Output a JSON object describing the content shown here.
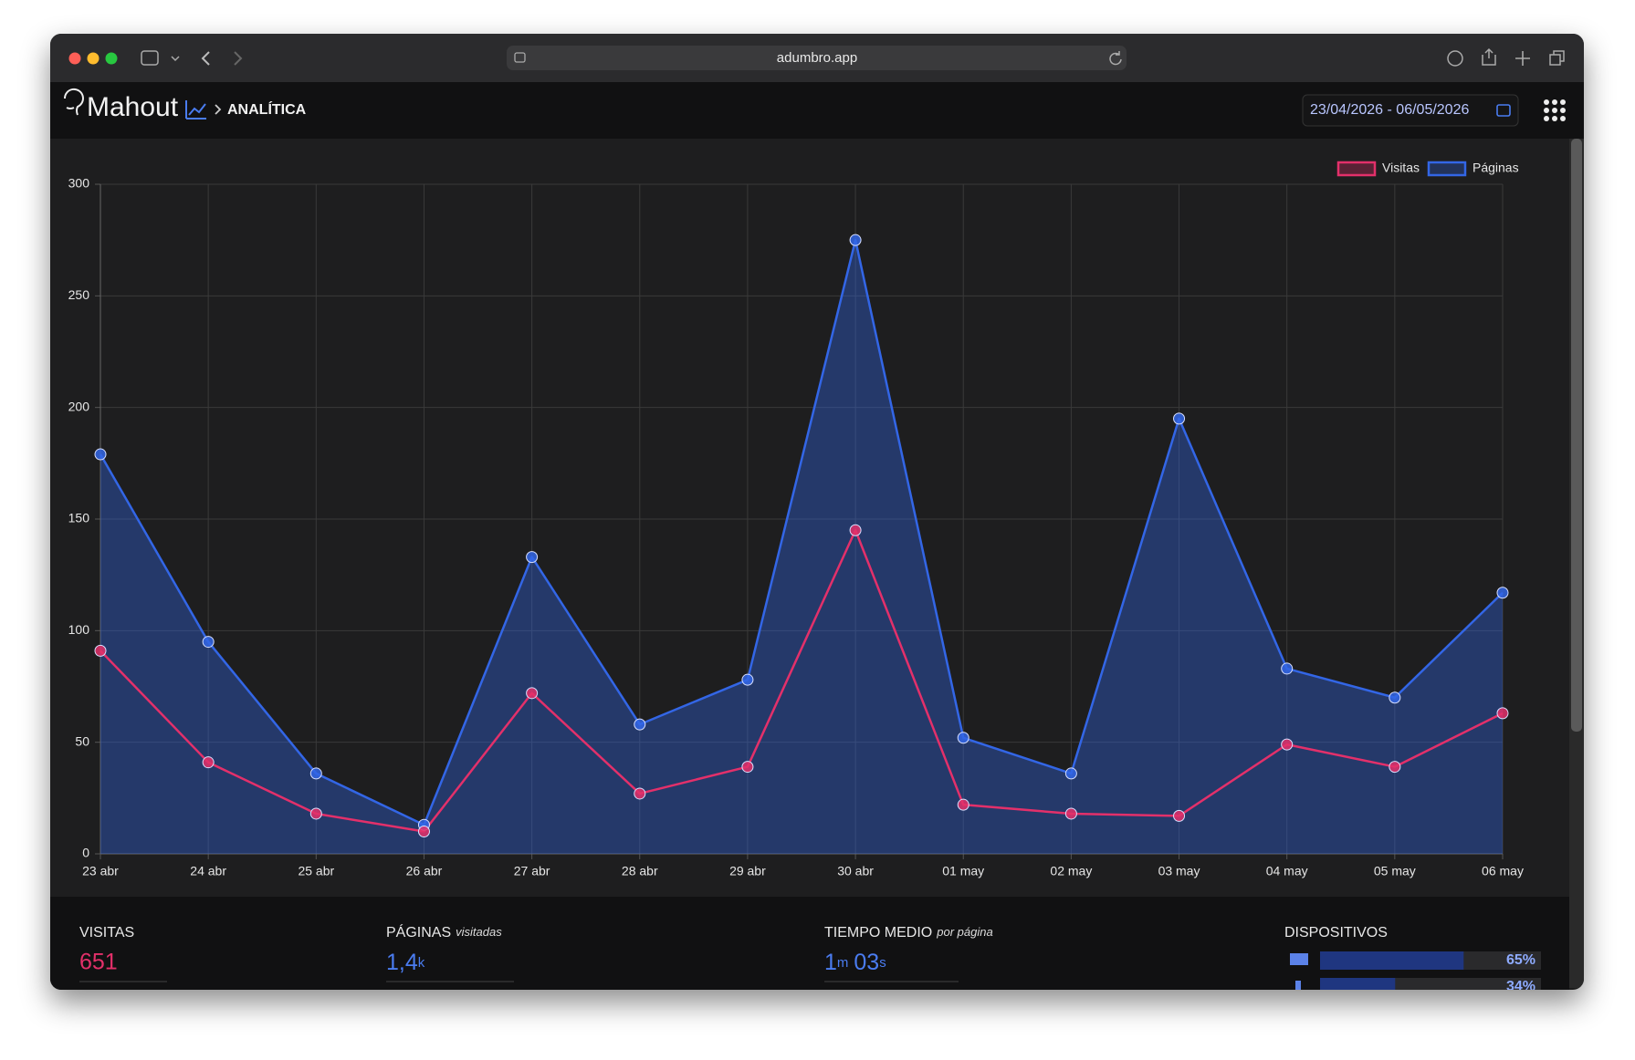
{
  "browser": {
    "url": "adumbro.app"
  },
  "header": {
    "brand": "Mahout",
    "section": "ANALÍTICA",
    "date_range": "23/04/2026 - 06/05/2026"
  },
  "chart_data": {
    "type": "line",
    "categories": [
      "23 abr",
      "24 abr",
      "25 abr",
      "26 abr",
      "27 abr",
      "28 abr",
      "29 abr",
      "30 abr",
      "01 may",
      "02 may",
      "03 may",
      "04 may",
      "05 may",
      "06 may"
    ],
    "series": [
      {
        "name": "Visitas",
        "color": "#e3306a",
        "values": [
          91,
          41,
          18,
          10,
          72,
          27,
          39,
          145,
          22,
          18,
          17,
          49,
          39,
          63
        ]
      },
      {
        "name": "Páginas",
        "color": "#3366e6",
        "fill": true,
        "values": [
          179,
          95,
          36,
          13,
          133,
          58,
          78,
          275,
          52,
          36,
          195,
          83,
          70,
          117
        ]
      }
    ],
    "ylim": [
      0,
      300
    ],
    "yticks": [
      0,
      50,
      100,
      150,
      200,
      250,
      300
    ],
    "grid": true,
    "legend": "top-right"
  },
  "stats": {
    "visits": {
      "label": "VISITAS",
      "value": "651"
    },
    "pages": {
      "label": "PÁGINAS",
      "note": "visitadas",
      "value": "1,4",
      "unit": "k"
    },
    "time": {
      "label": "TIEMPO MEDIO",
      "note": "por página",
      "minutes": "1",
      "minutes_unit": "m",
      "seconds": "03",
      "seconds_unit": "s"
    },
    "devices": {
      "label": "DISPOSITIVOS",
      "values": [
        65,
        34
      ],
      "value_labels": [
        "65%",
        "34%"
      ]
    }
  }
}
